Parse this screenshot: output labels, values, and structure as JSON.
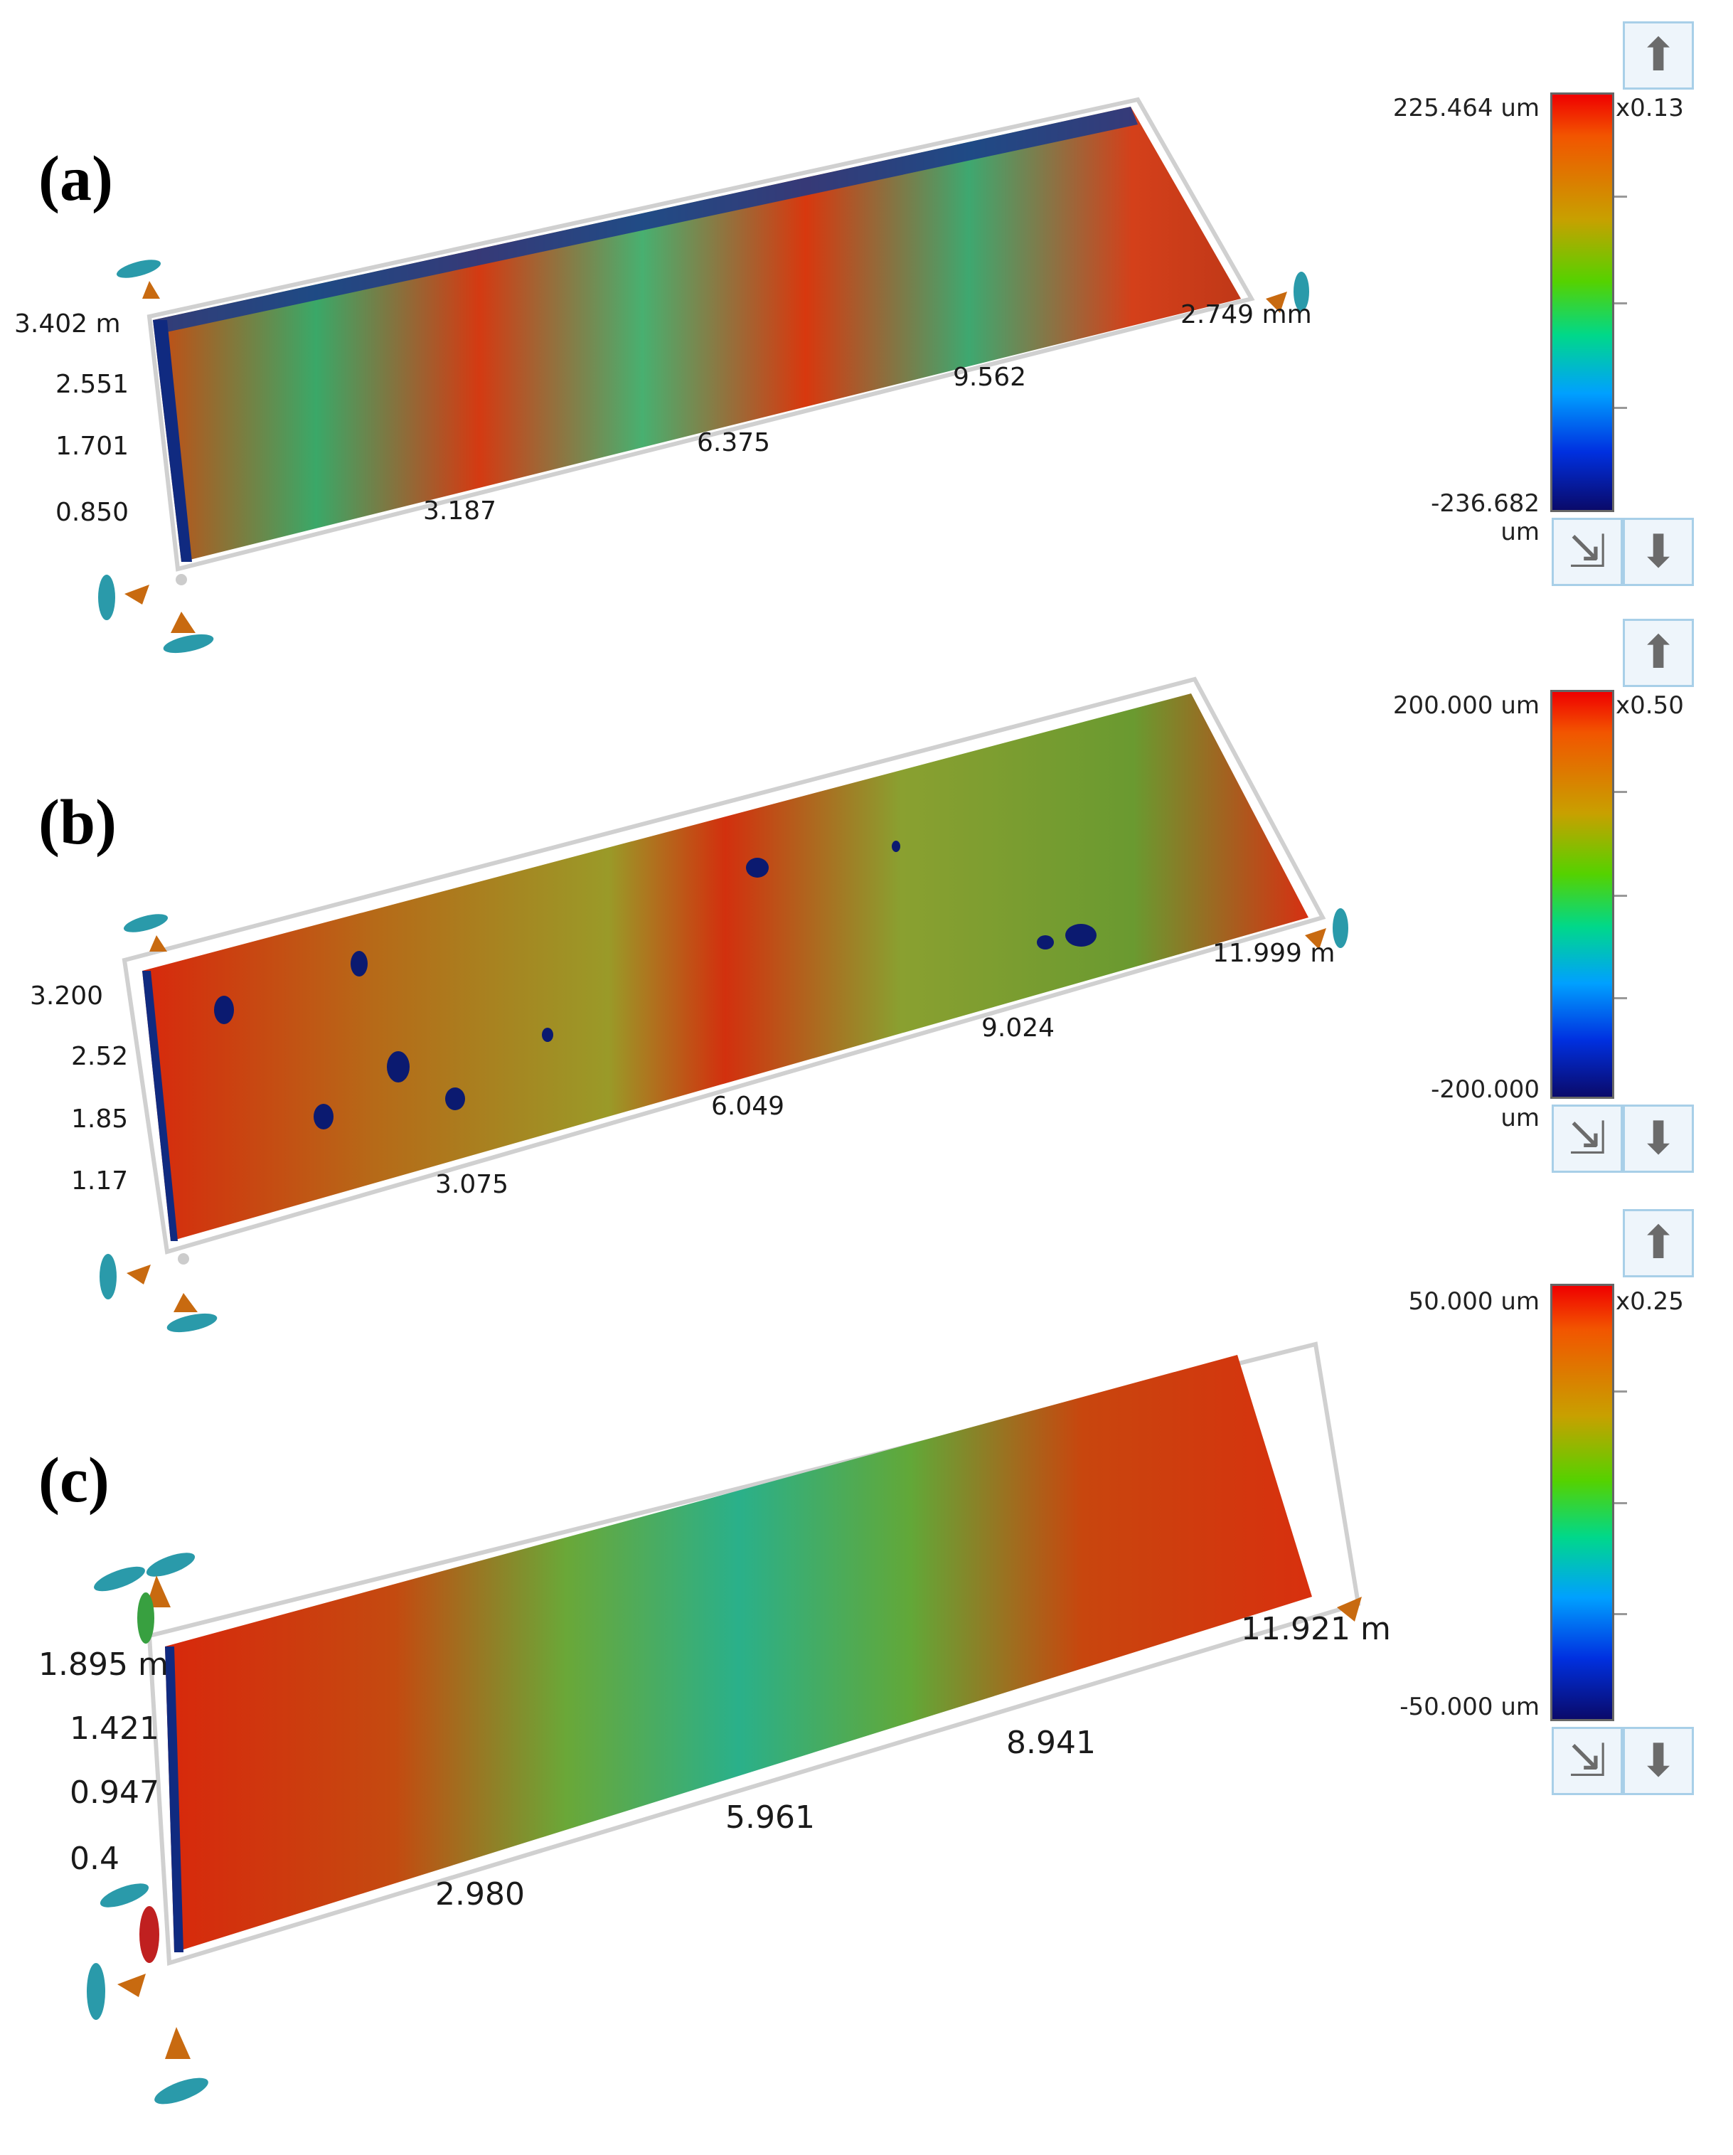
{
  "panels": [
    {
      "label": "(a)",
      "y_ticks": [
        "3.402 m",
        "2.551",
        "1.701",
        "0.850"
      ],
      "x_ticks": [
        "3.187",
        "6.375",
        "9.562"
      ],
      "x_end": "2.749 mm",
      "colorbar": {
        "max": "225.464 um",
        "min": "-236.682 um",
        "multiplier": "x0.13"
      }
    },
    {
      "label": "(b)",
      "y_ticks": [
        "3.200",
        "2.52",
        "1.85",
        "1.17"
      ],
      "x_ticks": [
        "3.075",
        "6.049",
        "9.024"
      ],
      "x_end": "11.999 m",
      "colorbar": {
        "max": "200.000 um",
        "min": "-200.000 um",
        "multiplier": "x0.50"
      }
    },
    {
      "label": "(c)",
      "y_ticks": [
        "1.895 m",
        "1.421",
        "0.947",
        "0.4"
      ],
      "x_ticks": [
        "2.980",
        "5.961",
        "8.941"
      ],
      "x_end": "11.921 m",
      "colorbar": {
        "max": "50.000 um",
        "min": "-50.000 um",
        "multiplier": "x0.25"
      }
    }
  ],
  "icons": {
    "scale_up": "arrow-up-icon",
    "scale_reset": "resize-icon",
    "scale_down": "arrow-down-icon"
  }
}
